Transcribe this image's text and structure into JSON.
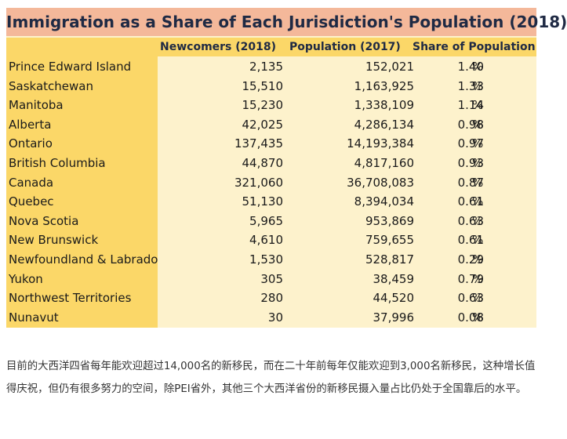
{
  "table": {
    "title": "Immigration as a Share of Each Jurisdiction's Population (2018)",
    "headers": [
      "Newcomers (2018)",
      "Population (2017)",
      "Share of Population"
    ],
    "unit": "%",
    "rows": [
      {
        "name": "Prince Edward Island",
        "newcomers": "2,135",
        "population": "152,021",
        "share": "1.40"
      },
      {
        "name": "Saskatchewan",
        "newcomers": "15,510",
        "population": "1,163,925",
        "share": "1.33"
      },
      {
        "name": "Manitoba",
        "newcomers": "15,230",
        "population": "1,338,109",
        "share": "1.14"
      },
      {
        "name": "Alberta",
        "newcomers": "42,025",
        "population": "4,286,134",
        "share": "0.98"
      },
      {
        "name": "Ontario",
        "newcomers": "137,435",
        "population": "14,193,384",
        "share": "0.97"
      },
      {
        "name": "British Columbia",
        "newcomers": "44,870",
        "population": "4,817,160",
        "share": "0.93"
      },
      {
        "name": "Canada",
        "newcomers": "321,060",
        "population": "36,708,083",
        "share": "0.87"
      },
      {
        "name": "Quebec",
        "newcomers": "51,130",
        "population": "8,394,034",
        "share": "0.61"
      },
      {
        "name": "Nova Scotia",
        "newcomers": "5,965",
        "population": "953,869",
        "share": "0.63"
      },
      {
        "name": "New Brunswick",
        "newcomers": "4,610",
        "population": "759,655",
        "share": "0.61"
      },
      {
        "name": "Newfoundland & Labrado",
        "newcomers": "1,530",
        "population": "528,817",
        "share": "0.29"
      },
      {
        "name": "Yukon",
        "newcomers": "305",
        "population": "38,459",
        "share": "0.79"
      },
      {
        "name": "Northwest Territories",
        "newcomers": "280",
        "population": "44,520",
        "share": "0.63"
      },
      {
        "name": "Nunavut",
        "newcomers": "30",
        "population": "37,996",
        "share": "0.08"
      }
    ]
  },
  "caption": "目前的大西洋四省每年能欢迎超过14,000名的新移民，而在二十年前每年仅能欢迎到3,000名新移民，这种增长值得庆祝，但仍有很多努力的空间，除PEI省外，其他三个大西洋省份的新移民摄入量占比仍处于全国靠后的水平。",
  "colors": {
    "title_bg": "#f4b89a",
    "header_bg": "#fbd768",
    "body_bg": "#fdf2cc",
    "title_text": "#1f2a44"
  }
}
